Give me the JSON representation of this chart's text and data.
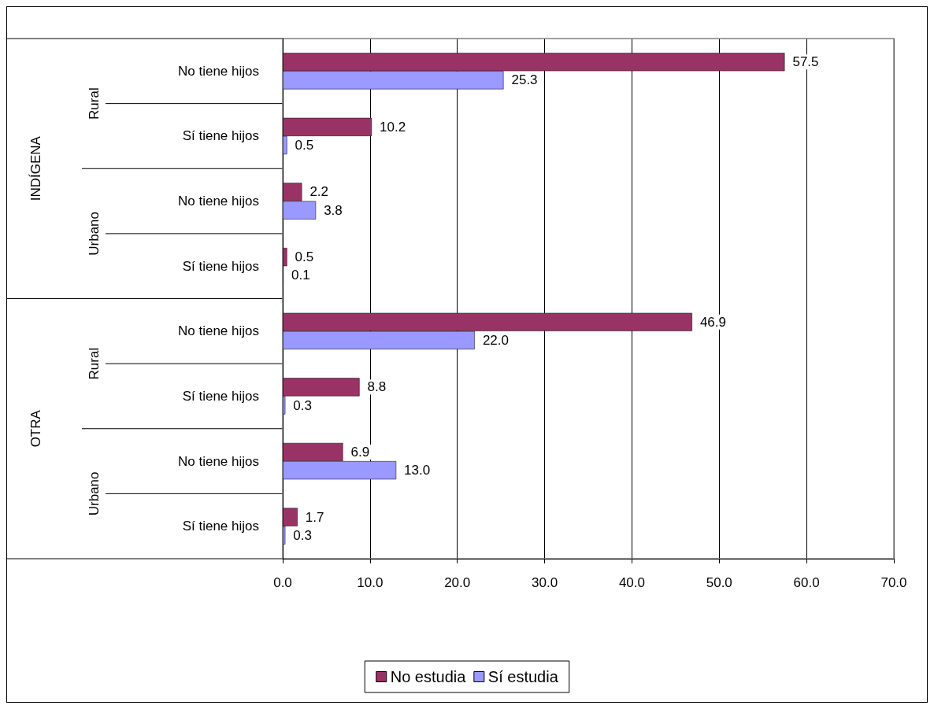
{
  "chart_data": {
    "type": "bar",
    "orientation": "horizontal",
    "categories": [
      "No tiene hijos",
      "Sí tiene hijos",
      "No tiene hijos",
      "Sí tiene hijos",
      "No tiene hijos",
      "Sí tiene hijos",
      "No tiene hijos",
      "Sí tiene hijos"
    ],
    "annotations": [
      "Rural",
      "Urbano",
      "Rural",
      "Urbano",
      "INDÍGENA",
      "OTRA"
    ],
    "series": [
      {
        "name": "No estudia",
        "color": "#993366",
        "values": [
          57.5,
          10.2,
          2.2,
          0.5,
          46.9,
          8.8,
          6.9,
          1.7
        ],
        "value_labels": [
          "57.5",
          "10.2",
          "2.2",
          "0.5",
          "46.9",
          "8.8",
          "6.9",
          "1.7"
        ]
      },
      {
        "name": "Sí estudia",
        "color": "#9999ff",
        "values": [
          25.3,
          0.5,
          3.8,
          0.1,
          22.0,
          0.3,
          13.0,
          0.3
        ],
        "value_labels": [
          "25.3",
          "0.5",
          "3.8",
          "0.1",
          "22.0",
          "0.3",
          "13.0",
          "0.3"
        ]
      }
    ],
    "xlim": [
      0,
      70
    ],
    "xticks": [
      {
        "value": 0,
        "label": "0.0"
      },
      {
        "value": 10,
        "label": "10.0"
      },
      {
        "value": 20,
        "label": "20.0"
      },
      {
        "value": 30,
        "label": "30.0"
      },
      {
        "value": 40,
        "label": "40.0"
      },
      {
        "value": 50,
        "label": "50.0"
      },
      {
        "value": 60,
        "label": "60.0"
      },
      {
        "value": 70,
        "label": "70.0"
      }
    ],
    "grid": "x",
    "legend": "bottom"
  }
}
